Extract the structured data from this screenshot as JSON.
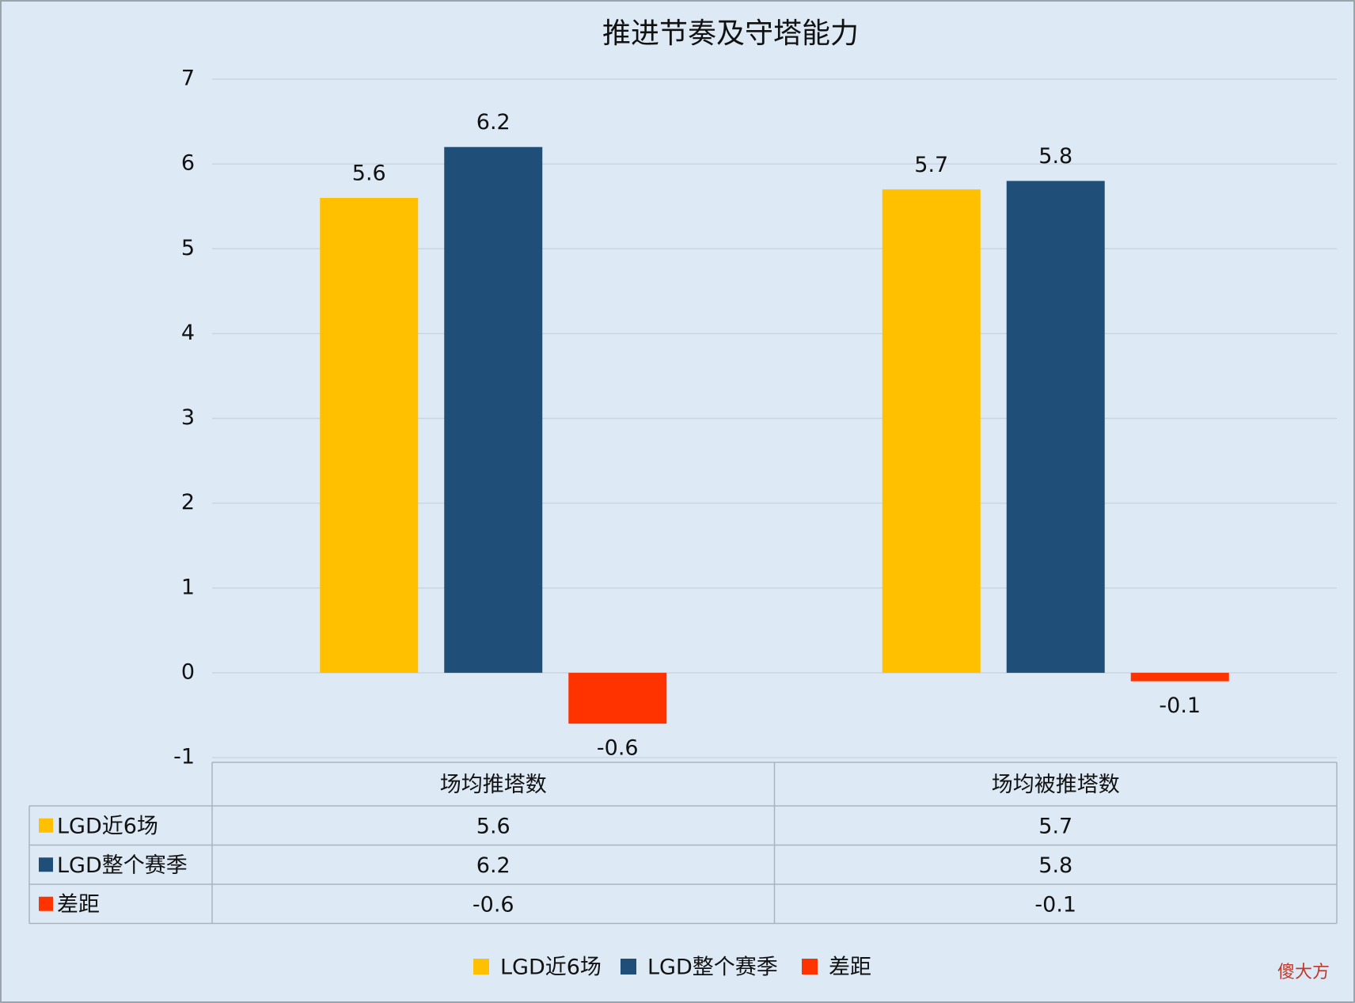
{
  "chart_data": {
    "type": "bar",
    "title": "推进节奏及守塔能力",
    "categories": [
      "场均推塔数",
      "场均被推塔数"
    ],
    "series": [
      {
        "name": "LGD近6场",
        "color": "#FFC000",
        "values": [
          5.6,
          5.7
        ]
      },
      {
        "name": "LGD整个赛季",
        "color": "#1F4E79",
        "values": [
          6.2,
          5.8
        ]
      },
      {
        "name": "差距",
        "color": "#FF3300",
        "values": [
          -0.6,
          -0.1
        ]
      }
    ],
    "ylim": [
      -1,
      7
    ],
    "yticks": [
      -1,
      0,
      1,
      2,
      3,
      4,
      5,
      6,
      7
    ],
    "grid": true,
    "legend": "bottom",
    "data_table": true,
    "watermark": "傻大方"
  }
}
